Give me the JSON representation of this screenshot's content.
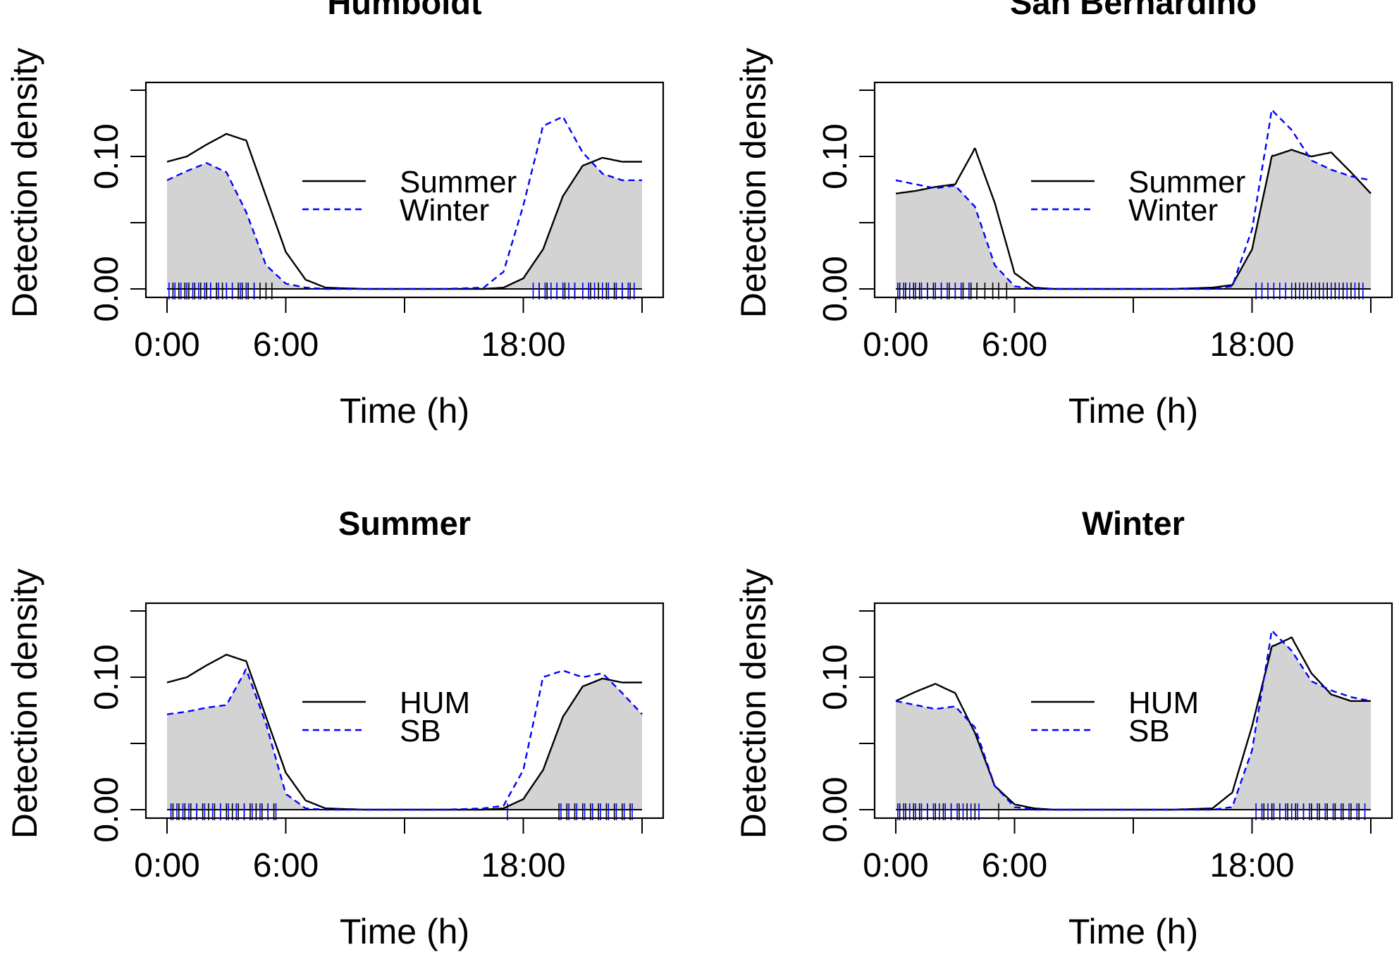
{
  "chart_data": [
    {
      "type": "area",
      "title": "Humboldt",
      "xlabel": "Time (h)",
      "ylabel": "Detection density",
      "xlim": [
        0,
        24
      ],
      "ylim": [
        0,
        0.15
      ],
      "x_ticks": [
        0,
        6,
        12,
        18,
        24
      ],
      "x_tick_labels": [
        "0:00",
        "6:00",
        "",
        "18:00",
        ""
      ],
      "y_ticks": [
        0,
        0.05,
        0.1,
        0.15
      ],
      "y_tick_labels": [
        "0.00",
        "",
        "0.10",
        ""
      ],
      "legend_position": "center-right",
      "overlap_fill": "#d3d3d3",
      "series": [
        {
          "name": "Summer",
          "style": "solid",
          "color": "#000000",
          "x": [
            0,
            1,
            2,
            3,
            4,
            5,
            6,
            7,
            8,
            10,
            12,
            14,
            16,
            17,
            18,
            19,
            20,
            21,
            22,
            23,
            24
          ],
          "y": [
            0.096,
            0.1,
            0.109,
            0.117,
            0.112,
            0.07,
            0.028,
            0.007,
            0.001,
            0,
            0,
            0,
            0,
            0.001,
            0.008,
            0.03,
            0.07,
            0.093,
            0.099,
            0.096,
            0.096
          ]
        },
        {
          "name": "Winter",
          "style": "dashed",
          "color": "#0000ff",
          "x": [
            0,
            1,
            2,
            3,
            4,
            5,
            6,
            7,
            8,
            10,
            12,
            14,
            16,
            17,
            18,
            19,
            20,
            21,
            22,
            23,
            24
          ],
          "y": [
            0.082,
            0.089,
            0.095,
            0.088,
            0.058,
            0.018,
            0.004,
            0.001,
            0,
            0,
            0,
            0,
            0.001,
            0.013,
            0.063,
            0.123,
            0.13,
            0.103,
            0.087,
            0.082,
            0.082
          ]
        }
      ],
      "rug": {
        "Summer": [
          0.3,
          0.6,
          0.9,
          1.1,
          1.4,
          1.7,
          2.0,
          2.2,
          2.5,
          2.8,
          3.0,
          3.3,
          3.6,
          3.8,
          4.1,
          4.4,
          4.7,
          5.0,
          5.3,
          18.8,
          19.2,
          19.7,
          20.1,
          20.6,
          21.0,
          21.4,
          21.8,
          22.2,
          22.6,
          23.0,
          23.4
        ],
        "Winter": [
          0.1,
          0.4,
          0.7,
          1.0,
          1.3,
          1.6,
          1.9,
          2.2,
          2.6,
          3.0,
          3.3,
          3.7,
          4.0,
          4.4,
          18.5,
          18.8,
          19.1,
          19.4,
          19.7,
          20.0,
          20.3,
          20.6,
          21.0,
          21.3,
          21.6,
          22.0,
          22.3,
          22.7,
          23.0,
          23.3,
          23.6
        ]
      }
    },
    {
      "type": "area",
      "title": "San Bernardino",
      "xlabel": "Time (h)",
      "ylabel": "Detection density",
      "xlim": [
        0,
        24
      ],
      "ylim": [
        0,
        0.15
      ],
      "x_ticks": [
        0,
        6,
        12,
        18,
        24
      ],
      "x_tick_labels": [
        "0:00",
        "6:00",
        "",
        "18:00",
        ""
      ],
      "y_ticks": [
        0,
        0.05,
        0.1,
        0.15
      ],
      "y_tick_labels": [
        "0.00",
        "",
        "0.10",
        ""
      ],
      "legend_position": "center-right",
      "overlap_fill": "#d3d3d3",
      "series": [
        {
          "name": "Summer",
          "style": "solid",
          "color": "#000000",
          "x": [
            0,
            1,
            2,
            3,
            4,
            5,
            6,
            7,
            8,
            10,
            12,
            14,
            16,
            17,
            18,
            19,
            20,
            21,
            22,
            23,
            24
          ],
          "y": [
            0.072,
            0.074,
            0.077,
            0.079,
            0.106,
            0.065,
            0.012,
            0.001,
            0,
            0,
            0,
            0,
            0.001,
            0.003,
            0.03,
            0.1,
            0.105,
            0.1,
            0.103,
            0.088,
            0.072
          ]
        },
        {
          "name": "Winter",
          "style": "dashed",
          "color": "#0000ff",
          "x": [
            0,
            1,
            2,
            3,
            4,
            5,
            6,
            7,
            8,
            10,
            12,
            14,
            16,
            17,
            18,
            19,
            20,
            21,
            22,
            23,
            24
          ],
          "y": [
            0.082,
            0.079,
            0.076,
            0.078,
            0.062,
            0.018,
            0.002,
            0,
            0,
            0,
            0,
            0,
            0,
            0.002,
            0.045,
            0.135,
            0.12,
            0.097,
            0.09,
            0.085,
            0.082
          ]
        }
      ],
      "rug": {
        "Summer": [
          0.2,
          0.5,
          0.9,
          1.2,
          1.6,
          1.9,
          2.3,
          2.7,
          3.0,
          3.4,
          3.8,
          4.1,
          4.5,
          4.9,
          5.2,
          5.6,
          20.2,
          20.6,
          21.0,
          21.4,
          21.8,
          22.2,
          22.6,
          23.0,
          23.4
        ],
        "Winter": [
          0.1,
          0.4,
          0.7,
          1.0,
          1.3,
          1.6,
          2.0,
          2.3,
          2.6,
          3.0,
          3.3,
          3.7,
          18.2,
          18.5,
          18.8,
          19.1,
          19.4,
          19.7,
          20.0,
          20.4,
          20.8,
          21.2,
          21.6,
          22.0,
          22.4,
          22.8,
          23.2,
          23.6
        ]
      }
    },
    {
      "type": "area",
      "title": "Summer",
      "xlabel": "Time (h)",
      "ylabel": "Detection density",
      "xlim": [
        0,
        24
      ],
      "ylim": [
        0,
        0.15
      ],
      "x_ticks": [
        0,
        6,
        12,
        18,
        24
      ],
      "x_tick_labels": [
        "0:00",
        "6:00",
        "",
        "18:00",
        ""
      ],
      "y_ticks": [
        0,
        0.05,
        0.1,
        0.15
      ],
      "y_tick_labels": [
        "0.00",
        "",
        "0.10",
        ""
      ],
      "legend_position": "center-right",
      "overlap_fill": "#d3d3d3",
      "series": [
        {
          "name": "HUM",
          "style": "solid",
          "color": "#000000",
          "x": [
            0,
            1,
            2,
            3,
            4,
            5,
            6,
            7,
            8,
            10,
            12,
            14,
            16,
            17,
            18,
            19,
            20,
            21,
            22,
            23,
            24
          ],
          "y": [
            0.096,
            0.1,
            0.109,
            0.117,
            0.112,
            0.07,
            0.028,
            0.007,
            0.001,
            0,
            0,
            0,
            0,
            0.001,
            0.008,
            0.03,
            0.07,
            0.093,
            0.099,
            0.096,
            0.096
          ]
        },
        {
          "name": "SB",
          "style": "dashed",
          "color": "#0000ff",
          "x": [
            0,
            1,
            2,
            3,
            4,
            5,
            6,
            7,
            8,
            10,
            12,
            14,
            16,
            17,
            18,
            19,
            20,
            21,
            22,
            23,
            24
          ],
          "y": [
            0.072,
            0.074,
            0.077,
            0.079,
            0.106,
            0.065,
            0.012,
            0.001,
            0,
            0,
            0,
            0,
            0.001,
            0.003,
            0.03,
            0.1,
            0.105,
            0.1,
            0.103,
            0.088,
            0.072
          ]
        }
      ],
      "rug": {
        "HUM": [
          0.3,
          0.6,
          0.9,
          1.2,
          1.5,
          1.8,
          2.1,
          2.4,
          2.7,
          3.0,
          3.3,
          3.6,
          3.9,
          4.2,
          4.5,
          4.8,
          5.1,
          5.4,
          19.8,
          20.2,
          20.6,
          21.0,
          21.4,
          21.8,
          22.2,
          22.6,
          23.0,
          23.4
        ],
        "SB": [
          0.2,
          0.5,
          0.8,
          1.1,
          1.5,
          1.9,
          2.3,
          2.7,
          3.1,
          3.5,
          3.9,
          4.3,
          4.7,
          5.1,
          5.5,
          17.2,
          19.9,
          20.3,
          20.7,
          21.1,
          21.5,
          21.9,
          22.3,
          22.7,
          23.1,
          23.5
        ]
      }
    },
    {
      "type": "area",
      "title": "Winter",
      "xlabel": "Time (h)",
      "ylabel": "Detection density",
      "xlim": [
        0,
        24
      ],
      "ylim": [
        0,
        0.15
      ],
      "x_ticks": [
        0,
        6,
        12,
        18,
        24
      ],
      "x_tick_labels": [
        "0:00",
        "6:00",
        "",
        "18:00",
        ""
      ],
      "y_ticks": [
        0,
        0.05,
        0.1,
        0.15
      ],
      "y_tick_labels": [
        "0.00",
        "",
        "0.10",
        ""
      ],
      "legend_position": "center-right",
      "overlap_fill": "#d3d3d3",
      "series": [
        {
          "name": "HUM",
          "style": "solid",
          "color": "#000000",
          "x": [
            0,
            1,
            2,
            3,
            4,
            5,
            6,
            7,
            8,
            10,
            12,
            14,
            16,
            17,
            18,
            19,
            20,
            21,
            22,
            23,
            24
          ],
          "y": [
            0.082,
            0.089,
            0.095,
            0.088,
            0.058,
            0.018,
            0.004,
            0.001,
            0,
            0,
            0,
            0,
            0.001,
            0.013,
            0.063,
            0.123,
            0.13,
            0.103,
            0.087,
            0.082,
            0.082
          ]
        },
        {
          "name": "SB",
          "style": "dashed",
          "color": "#0000ff",
          "x": [
            0,
            1,
            2,
            3,
            4,
            5,
            6,
            7,
            8,
            10,
            12,
            14,
            16,
            17,
            18,
            19,
            20,
            21,
            22,
            23,
            24
          ],
          "y": [
            0.082,
            0.079,
            0.076,
            0.078,
            0.062,
            0.018,
            0.002,
            0,
            0,
            0,
            0,
            0,
            0,
            0.002,
            0.045,
            0.135,
            0.12,
            0.097,
            0.09,
            0.085,
            0.082
          ]
        }
      ],
      "rug": {
        "HUM": [
          0.2,
          0.5,
          0.9,
          1.2,
          1.6,
          2.0,
          2.4,
          2.8,
          3.2,
          3.6,
          4.0,
          5.2,
          18.6,
          19.0,
          19.4,
          19.8,
          20.2,
          20.6,
          21.0,
          21.4,
          21.8,
          22.2,
          22.6,
          23.0,
          23.4
        ],
        "SB": [
          0.1,
          0.4,
          0.7,
          1.0,
          1.3,
          1.6,
          1.9,
          2.2,
          2.5,
          2.8,
          3.1,
          3.4,
          3.8,
          4.2,
          18.2,
          18.5,
          18.8,
          19.1,
          19.4,
          19.7,
          20.0,
          20.3,
          20.6,
          20.9,
          21.3,
          21.7,
          22.1,
          22.5,
          22.9,
          23.3,
          23.7
        ]
      }
    }
  ]
}
